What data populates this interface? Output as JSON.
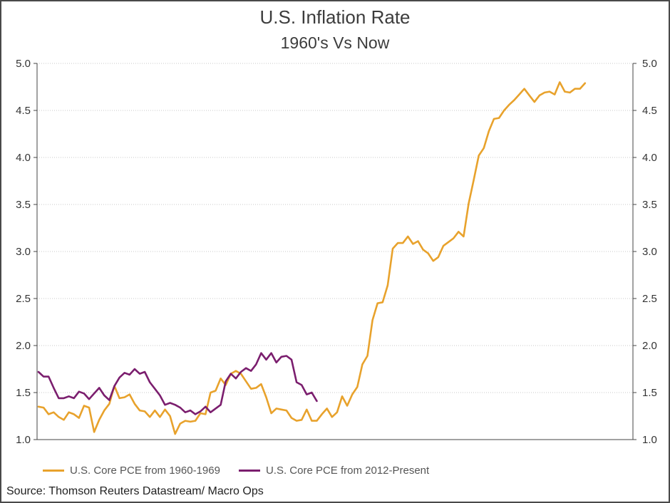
{
  "chart_data": {
    "type": "line",
    "title": "U.S. Inflation Rate",
    "subtitle": "1960's Vs Now",
    "xlabel": "",
    "ylabel": "",
    "ylim": [
      1.0,
      5.0
    ],
    "yticks": [
      "1.0",
      "1.5",
      "2.0",
      "2.5",
      "3.0",
      "3.5",
      "4.0",
      "4.5",
      "5.0"
    ],
    "grid": true,
    "legend_position": "bottom-left",
    "source": "Source: Thomson Reuters Datastream/ Macro Ops",
    "series": [
      {
        "name": "U.S. Core PCE from 1960-1969",
        "color": "#e8a22c",
        "values": [
          1.35,
          1.34,
          1.27,
          1.29,
          1.24,
          1.21,
          1.29,
          1.27,
          1.23,
          1.36,
          1.34,
          1.08,
          1.21,
          1.31,
          1.38,
          1.57,
          1.44,
          1.45,
          1.48,
          1.38,
          1.31,
          1.3,
          1.24,
          1.31,
          1.24,
          1.32,
          1.25,
          1.06,
          1.17,
          1.2,
          1.19,
          1.2,
          1.28,
          1.27,
          1.5,
          1.52,
          1.65,
          1.58,
          1.7,
          1.73,
          1.7,
          1.62,
          1.54,
          1.55,
          1.59,
          1.45,
          1.28,
          1.33,
          1.32,
          1.31,
          1.23,
          1.2,
          1.21,
          1.32,
          1.2,
          1.2,
          1.27,
          1.33,
          1.24,
          1.29,
          1.46,
          1.36,
          1.48,
          1.56,
          1.8,
          1.89,
          2.27,
          2.45,
          2.46,
          2.64,
          3.03,
          3.09,
          3.09,
          3.16,
          3.08,
          3.11,
          3.02,
          2.98,
          2.9,
          2.94,
          3.06,
          3.1,
          3.14,
          3.21,
          3.16,
          3.51,
          3.76,
          4.02,
          4.1,
          4.28,
          4.41,
          4.42,
          4.5,
          4.56,
          4.61,
          4.67,
          4.73,
          4.66,
          4.59,
          4.66,
          4.69,
          4.7,
          4.67,
          4.8,
          4.7,
          4.69,
          4.73,
          4.73,
          4.79
        ]
      },
      {
        "name": "U.S. Core PCE from 2012-Present",
        "color": "#7b1e6e",
        "values": [
          1.72,
          1.67,
          1.67,
          1.55,
          1.44,
          1.44,
          1.46,
          1.44,
          1.51,
          1.49,
          1.43,
          1.49,
          1.55,
          1.47,
          1.42,
          1.57,
          1.66,
          1.71,
          1.69,
          1.75,
          1.7,
          1.72,
          1.61,
          1.54,
          1.47,
          1.37,
          1.39,
          1.37,
          1.34,
          1.29,
          1.31,
          1.27,
          1.3,
          1.35,
          1.29,
          1.33,
          1.37,
          1.62,
          1.7,
          1.65,
          1.72,
          1.76,
          1.73,
          1.8,
          1.92,
          1.85,
          1.92,
          1.82,
          1.88,
          1.89,
          1.85,
          1.61,
          1.58,
          1.48,
          1.5,
          1.41
        ]
      }
    ]
  }
}
